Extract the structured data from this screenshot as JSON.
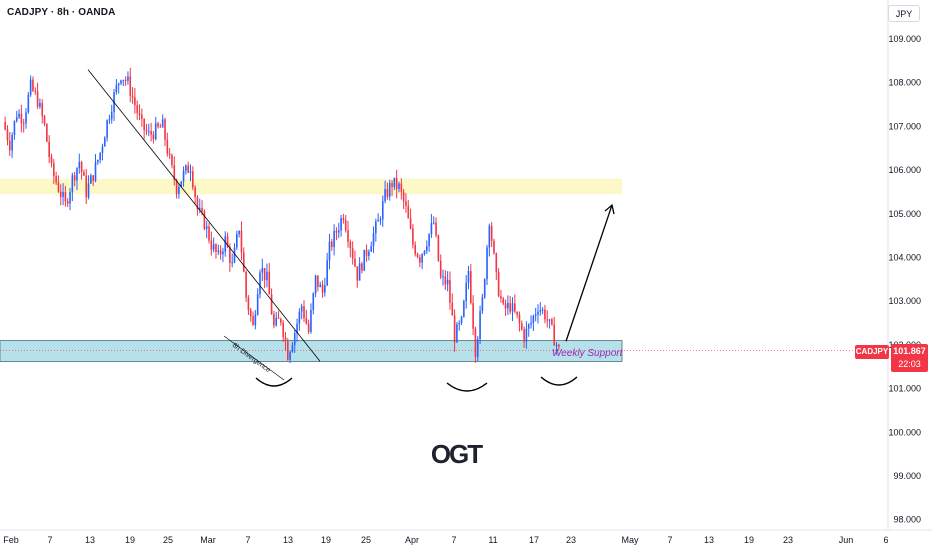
{
  "header": {
    "symbol_title": "CADJPY · 8h · OANDA",
    "currency_label": "JPY"
  },
  "price_badge": {
    "symbol": "CADJPY",
    "price": "101.867",
    "countdown": "22:03"
  },
  "annotations": {
    "support_label": "Weekly Support",
    "divergence_label": "8h Divergence",
    "watermark": "OGT"
  },
  "colors": {
    "up": "#2962ff",
    "down": "#f23645",
    "support_fill": "#b7e1ea",
    "support_stroke": "#4a6f7a",
    "resistance_fill": "#fdf8c8",
    "annotation_text": "#9c27b0",
    "price_line": "#f23645",
    "line": "#000000"
  },
  "chart_data": {
    "type": "candlestick",
    "title": "CADJPY · 8h · OANDA",
    "ylabel": "JPY",
    "ylim": [
      98.0,
      109.4
    ],
    "yticks": [
      "109.000",
      "108.000",
      "107.000",
      "106.000",
      "105.000",
      "104.000",
      "103.000",
      "102.000",
      "101.000",
      "100.000",
      "99.000",
      "98.000"
    ],
    "xticks": [
      "Feb",
      "7",
      "13",
      "19",
      "25",
      "Mar",
      "7",
      "13",
      "19",
      "25",
      "Apr",
      "7",
      "11",
      "17",
      "23",
      "May",
      "7",
      "13",
      "19",
      "23",
      "Jun",
      "6"
    ],
    "last_price": 101.867,
    "zones": [
      {
        "name": "Weekly Support",
        "from": 101.62,
        "to": 102.1
      },
      {
        "name": "Resistance",
        "from": 105.45,
        "to": 105.8
      }
    ],
    "path_points": [
      107.1,
      106.6,
      107.3,
      107.2,
      107.9,
      107.6,
      107.0,
      106.0,
      105.6,
      105.2,
      105.8,
      106.2,
      105.5,
      105.9,
      106.4,
      107.1,
      107.7,
      108.2,
      108.0,
      107.5,
      107.0,
      106.8,
      106.9,
      107.0,
      106.2,
      105.6,
      105.9,
      106.1,
      105.1,
      104.8,
      104.3,
      104.0,
      104.4,
      103.8,
      104.7,
      103.1,
      102.4,
      103.8,
      103.5,
      102.4,
      102.6,
      101.8,
      102.3,
      102.9,
      102.3,
      103.5,
      103.2,
      104.2,
      104.6,
      105.0,
      104.3,
      103.6,
      104.0,
      104.4,
      104.8,
      105.4,
      105.7,
      105.6,
      105.1,
      104.3,
      104.0,
      104.4,
      104.8,
      103.5,
      103.4,
      102.2,
      102.5,
      103.7,
      101.9,
      103.0,
      104.9,
      103.5,
      102.8,
      102.9,
      102.6,
      102.2,
      102.5,
      102.9,
      102.7,
      102.3,
      101.87
    ],
    "projection": {
      "from": 101.9,
      "to": 105.2
    },
    "divergence_line": {
      "from": 108.3,
      "to": 101.9
    }
  }
}
